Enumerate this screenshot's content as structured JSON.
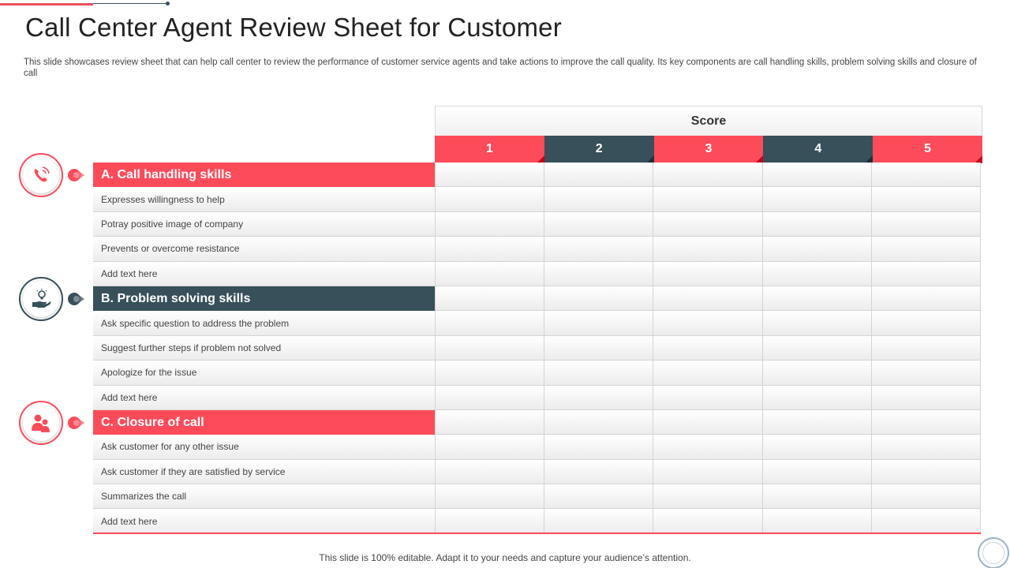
{
  "page": {
    "title": "Call Center Agent Review Sheet for Customer",
    "subtitle": "This slide showcases review sheet that can help call center to review the performance of customer service agents and take actions to improve the call quality. Its key components are call handling skills, problem solving skills and closure of call",
    "footer": "This slide is 100% editable. Adapt it to your needs and capture your audience’s attention."
  },
  "score": {
    "header": "Score",
    "columns": [
      "1",
      "2",
      "3",
      "4",
      "5"
    ]
  },
  "sections": [
    {
      "title": "A. Call handling skills",
      "icon": "phone-icon",
      "items": [
        "Expresses willingness to help",
        "Potray positive image of company",
        "Prevents or overcome resistance",
        "Add text here"
      ]
    },
    {
      "title": "B. Problem solving skills",
      "icon": "hand-lightbulb-icon",
      "items": [
        "Ask specific question to address the problem",
        "Suggest further steps if problem not solved",
        "Apologize for the issue",
        "Add text here"
      ]
    },
    {
      "title": "C. Closure of call",
      "icon": "users-icon",
      "items": [
        "Ask customer for any other issue",
        "Ask customer if they are satisfied by service",
        "Summarizes the call",
        "Add text here"
      ]
    }
  ],
  "colors": {
    "accent_red": "#fe4b5a",
    "accent_dark": "#37505a"
  }
}
